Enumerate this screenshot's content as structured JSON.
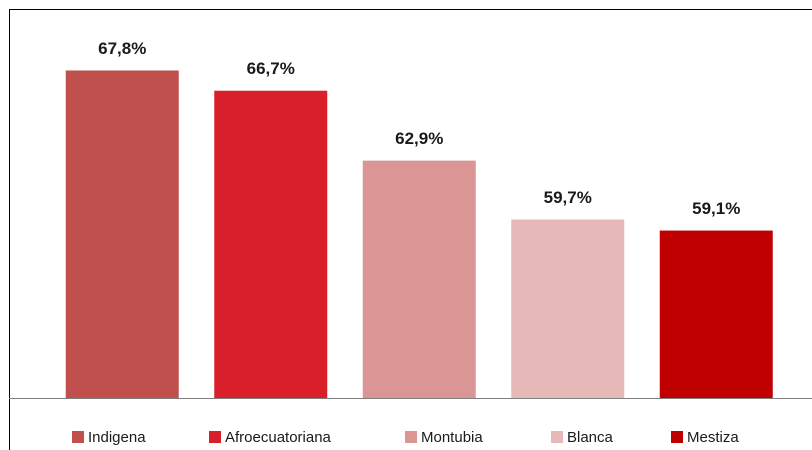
{
  "chart_data": {
    "type": "bar",
    "categories": [
      "Indigena",
      "Afroecuatoriana",
      "Montubia",
      "Blanca",
      "Mestiza"
    ],
    "values": [
      67.8,
      66.7,
      62.9,
      59.7,
      59.1
    ],
    "value_labels": [
      "67,8%",
      "66,7%",
      "62,9%",
      "59,7%",
      "59,1%"
    ],
    "colors": [
      "#c0504d",
      "#d9202a",
      "#d99694",
      "#e6b9b8",
      "#c00000"
    ],
    "ylim": [
      50,
      70
    ],
    "legend": "bottom"
  }
}
